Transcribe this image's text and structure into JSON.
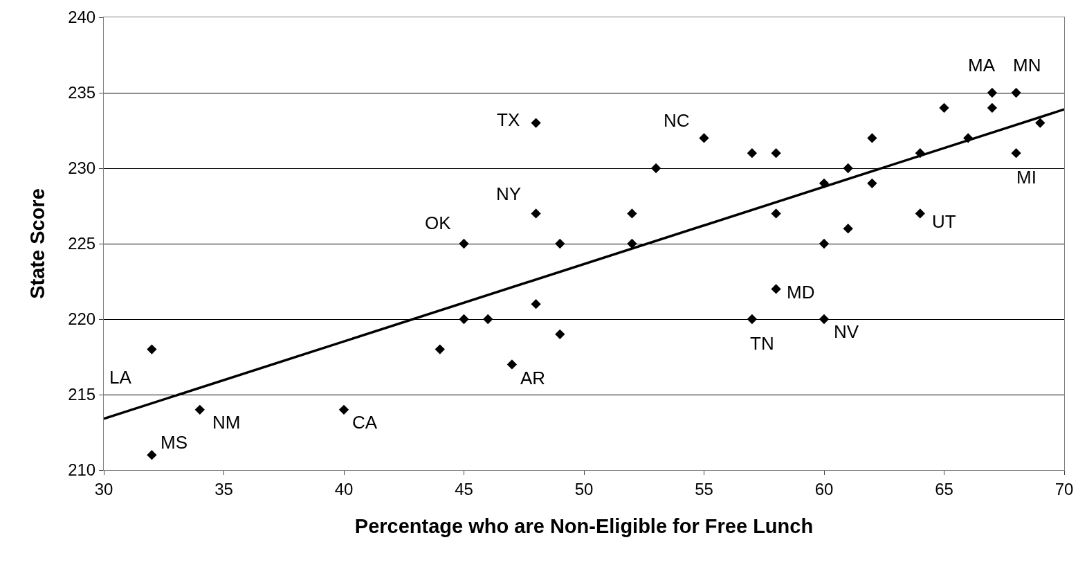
{
  "chart_data": {
    "type": "scatter",
    "xlabel": "Percentage who are Non-Eligible for Free Lunch",
    "ylabel": "State Score",
    "xlim": [
      30,
      70
    ],
    "xticks": [
      30,
      35,
      40,
      45,
      50,
      55,
      60,
      65,
      70
    ],
    "ylim": [
      210,
      240
    ],
    "yticks": [
      210,
      215,
      220,
      225,
      230,
      235,
      240
    ],
    "grid": "y",
    "legend": false,
    "series": [
      {
        "marker": "diamond",
        "color": "#000000",
        "x": [
          32,
          32,
          34,
          40,
          44,
          45,
          45,
          46,
          47,
          48,
          48,
          48,
          49,
          49,
          52,
          52,
          53,
          55,
          57,
          57,
          58,
          58,
          58,
          60,
          60,
          60,
          61,
          61,
          62,
          62,
          64,
          64,
          65,
          66,
          67,
          67,
          68,
          68,
          69
        ],
        "values": [
          218,
          211,
          214,
          214,
          218,
          225,
          220,
          220,
          217,
          233,
          227,
          221,
          225,
          219,
          227,
          225,
          230,
          232,
          231,
          220,
          231,
          227,
          222,
          229,
          225,
          220,
          230,
          226,
          232,
          229,
          231,
          227,
          234,
          232,
          235,
          234,
          235,
          231,
          233
        ]
      },
      {
        "type": "line",
        "marker": "none",
        "color": "#000000",
        "x": [
          30,
          70
        ],
        "values": [
          213.4,
          233.9
        ]
      }
    ],
    "annotations": [
      {
        "text": "LA",
        "x": 32,
        "y": 218
      },
      {
        "text": "MS",
        "x": 32,
        "y": 211
      },
      {
        "text": "NM",
        "x": 34,
        "y": 214
      },
      {
        "text": "CA",
        "x": 40,
        "y": 214
      },
      {
        "text": "OK",
        "x": 45,
        "y": 225
      },
      {
        "text": "AR",
        "x": 47,
        "y": 217
      },
      {
        "text": "TX",
        "x": 48,
        "y": 233
      },
      {
        "text": "NY",
        "x": 48,
        "y": 227
      },
      {
        "text": "NC",
        "x": 55,
        "y": 232
      },
      {
        "text": "TN",
        "x": 57,
        "y": 220
      },
      {
        "text": "MD",
        "x": 58,
        "y": 222
      },
      {
        "text": "NV",
        "x": 60,
        "y": 220
      },
      {
        "text": "UT",
        "x": 64,
        "y": 227
      },
      {
        "text": "MA",
        "x": 67,
        "y": 235
      },
      {
        "text": "MN",
        "x": 68,
        "y": 235
      },
      {
        "text": "MI",
        "x": 68,
        "y": 231
      }
    ]
  }
}
